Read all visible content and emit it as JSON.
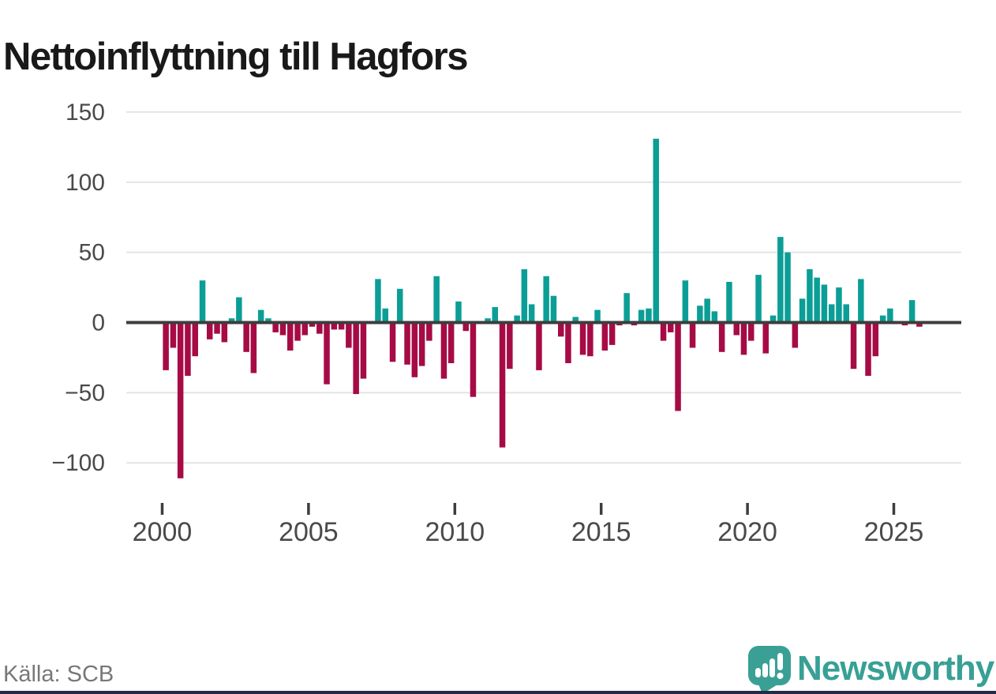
{
  "page": {
    "title": "Nettoinflyttning till Hagfors",
    "source_label": "Källa: SCB",
    "brand": {
      "name": "Newsworthy",
      "logo_icon": "newsworthy-speech-bubble-bar-chart-icon",
      "text_color": "#38a095",
      "icon_color": "#3aa095"
    },
    "bottom_strip_color": "#232b48"
  },
  "chart_data": {
    "type": "bar",
    "title": "Nettoinflyttning till Hagfors",
    "frequency": "quarterly",
    "start_year": 2000,
    "start_quarter": "2000 Q1",
    "end_quarter": "2025 Q4",
    "x_axis": {
      "ticks": [
        2000,
        2005,
        2010,
        2015,
        2020,
        2025
      ]
    },
    "y_axis": {
      "ticks": [
        150,
        100,
        50,
        0,
        -50,
        -100
      ],
      "range": [
        -120,
        160
      ]
    },
    "grid": "horizontal-only",
    "legend": "none",
    "colors": {
      "positive": "#0b9e96",
      "negative": "#a60b45",
      "grid": "#e4e4e4",
      "zero_line": "#3d3d3d",
      "axis_text": "#4a4a4a"
    },
    "values": [
      -34,
      -18,
      -111,
      -38,
      -24,
      30,
      -12,
      -8,
      -14,
      3,
      18,
      -21,
      -36,
      9,
      3,
      -7,
      -9,
      -20,
      -13,
      -9,
      -3,
      -8,
      -44,
      -5,
      -5,
      -18,
      -51,
      -40,
      0,
      31,
      10,
      -28,
      24,
      -30,
      -39,
      -31,
      -13,
      33,
      -40,
      -29,
      15,
      -6,
      -53,
      0,
      3,
      11,
      -89,
      -33,
      5,
      38,
      13,
      -34,
      33,
      19,
      -10,
      -29,
      4,
      -23,
      -24,
      9,
      -20,
      -16,
      -2,
      21,
      -2,
      9,
      10,
      131,
      -13,
      -7,
      -63,
      30,
      -18,
      12,
      17,
      8,
      -21,
      29,
      -9,
      -23,
      -13,
      34,
      -22,
      5,
      61,
      50,
      -18,
      17,
      38,
      32,
      27,
      13,
      25,
      13,
      -33,
      31,
      -38,
      -24,
      5,
      10,
      0,
      -2,
      16,
      -3
    ]
  }
}
